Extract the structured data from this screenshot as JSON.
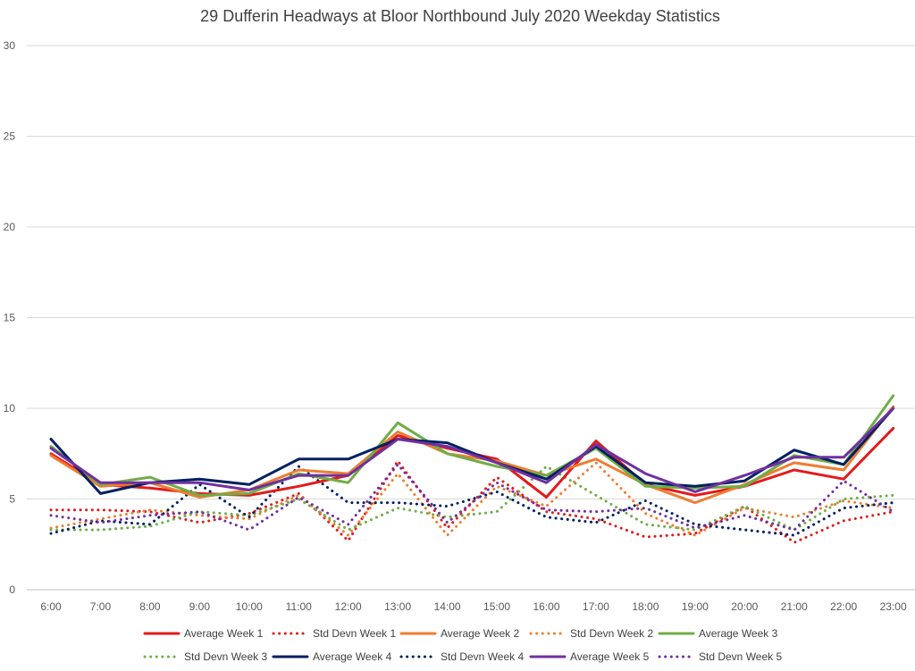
{
  "chart_data": {
    "type": "line",
    "title": "29 Dufferin Headways at Bloor Northbound July 2020 Weekday Statistics",
    "xlabel": "",
    "ylabel": "",
    "ylim": [
      0,
      30
    ],
    "yticks": [
      0,
      5,
      10,
      15,
      20,
      25,
      30
    ],
    "grid": "horizontal",
    "legend_position": "bottom",
    "categories": [
      "6:00",
      "7:00",
      "8:00",
      "9:00",
      "10:00",
      "11:00",
      "12:00",
      "13:00",
      "14:00",
      "15:00",
      "16:00",
      "17:00",
      "18:00",
      "19:00",
      "20:00",
      "21:00",
      "22:00",
      "23:00"
    ],
    "series": [
      {
        "name": "Average Week 1",
        "color": "#e31a1c",
        "style": "solid",
        "values": [
          7.5,
          5.8,
          5.6,
          5.3,
          5.2,
          5.7,
          6.3,
          8.5,
          7.8,
          7.2,
          5.1,
          8.2,
          5.8,
          5.2,
          5.7,
          6.6,
          6.1,
          8.9
        ]
      },
      {
        "name": "Std Devn Week 1",
        "color": "#e31a1c",
        "style": "dotted",
        "values": [
          4.4,
          4.4,
          4.3,
          3.7,
          4.2,
          5.3,
          2.7,
          7.1,
          3.4,
          6.2,
          4.3,
          3.9,
          2.9,
          3.1,
          4.6,
          2.6,
          3.8,
          4.3
        ]
      },
      {
        "name": "Average Week 2",
        "color": "#ed7d31",
        "style": "solid",
        "values": [
          7.4,
          5.7,
          5.9,
          5.1,
          5.5,
          6.6,
          6.4,
          8.7,
          7.5,
          7.1,
          6.3,
          7.2,
          5.8,
          4.8,
          5.8,
          7.0,
          6.6,
          10.1
        ]
      },
      {
        "name": "Std Devn Week 2",
        "color": "#ed7d31",
        "style": "dotted",
        "values": [
          3.4,
          3.9,
          4.4,
          4.1,
          3.9,
          5.2,
          3.0,
          6.4,
          3.0,
          5.7,
          4.6,
          7.0,
          4.2,
          3.0,
          4.5,
          4.0,
          4.9,
          4.5
        ]
      },
      {
        "name": "Average Week 3",
        "color": "#70ad47",
        "style": "solid",
        "values": [
          7.9,
          5.8,
          6.2,
          5.2,
          5.3,
          6.4,
          5.9,
          9.2,
          7.5,
          6.8,
          6.3,
          7.8,
          5.7,
          5.6,
          5.7,
          7.4,
          6.9,
          10.7
        ]
      },
      {
        "name": "Std Devn Week 3",
        "color": "#70ad47",
        "style": "dotted",
        "values": [
          3.3,
          3.3,
          3.5,
          4.3,
          4.1,
          5.0,
          3.3,
          4.5,
          4.0,
          4.3,
          6.8,
          5.2,
          3.6,
          3.3,
          4.6,
          3.3,
          5.0,
          5.2
        ]
      },
      {
        "name": "Average Week 4",
        "color": "#002060",
        "style": "solid",
        "values": [
          8.3,
          5.3,
          5.9,
          6.1,
          5.8,
          7.2,
          7.2,
          8.3,
          8.1,
          7.0,
          6.1,
          7.9,
          5.9,
          5.7,
          6.0,
          7.7,
          6.9,
          10.0
        ]
      },
      {
        "name": "Std Devn Week 4",
        "color": "#002060",
        "style": "dotted",
        "values": [
          3.1,
          3.8,
          3.6,
          5.8,
          4.0,
          6.8,
          4.8,
          4.8,
          4.6,
          5.4,
          4.0,
          3.7,
          4.9,
          3.6,
          3.3,
          3.0,
          4.5,
          4.8
        ]
      },
      {
        "name": "Average Week 5",
        "color": "#7030a0",
        "style": "solid",
        "values": [
          7.8,
          5.9,
          5.9,
          5.9,
          5.5,
          6.3,
          6.3,
          8.3,
          7.9,
          7.0,
          5.9,
          8.0,
          6.4,
          5.4,
          6.3,
          7.3,
          7.3,
          10.0
        ]
      },
      {
        "name": "Std Devn Week 5",
        "color": "#7030a0",
        "style": "dotted",
        "values": [
          4.1,
          3.7,
          4.1,
          4.3,
          3.3,
          5.1,
          3.6,
          6.9,
          3.7,
          5.9,
          4.4,
          4.3,
          4.5,
          3.4,
          4.1,
          3.3,
          6.0,
          4.3
        ]
      }
    ]
  }
}
